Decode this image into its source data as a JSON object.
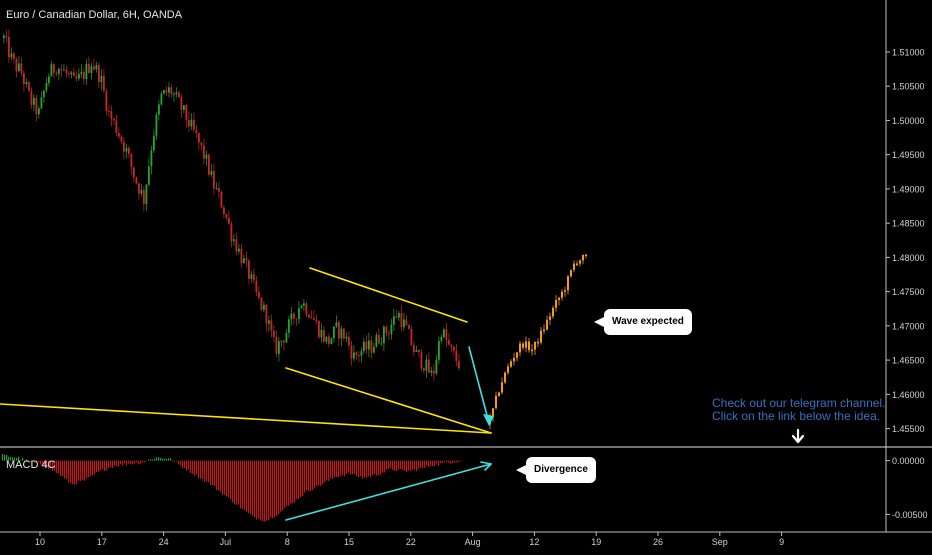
{
  "header": {
    "title": "Euro / Canadian Dollar, 6H, OANDA"
  },
  "indicator": {
    "label": "MACD 4C"
  },
  "callouts": {
    "wave": "Wave expected",
    "divergence": "Divergence"
  },
  "promo": {
    "line1": "Check out our telegram channel.",
    "line2": "Click on the link below the idea."
  },
  "colors": {
    "background": "#000000",
    "up": "#26a630",
    "down": "#c62828",
    "projection": "#f39c12",
    "trendline": "#ffe600",
    "arrow": "#3fe0e0",
    "macd_neg": "#c0181c",
    "macd_pos": "#2a9a2a"
  },
  "chart_data": [
    {
      "type": "candlestick",
      "title": "Euro / Canadian Dollar, 6H, OANDA",
      "x_ticks": [
        "10",
        "17",
        "24",
        "Jul",
        "8",
        "15",
        "22",
        "Aug",
        "12",
        "19",
        "26",
        "Sep",
        "9"
      ],
      "y_ticks": [
        "1.51000",
        "1.50500",
        "1.50000",
        "1.49500",
        "1.49000",
        "1.48500",
        "1.48000",
        "1.47500",
        "1.47000",
        "1.46500",
        "1.46000",
        "1.45500"
      ],
      "ylim": [
        1.4545,
        1.5135
      ],
      "price_path": [
        1.512,
        1.5085,
        1.507,
        1.503,
        1.501,
        1.5065,
        1.508,
        1.507,
        1.5055,
        1.5065,
        1.5085,
        1.5065,
        1.501,
        1.4985,
        1.4955,
        1.4915,
        1.4885,
        1.4975,
        1.5035,
        1.5045,
        1.5025,
        1.5,
        1.4975,
        1.4945,
        1.4905,
        1.4875,
        1.4835,
        1.4805,
        1.4775,
        1.474,
        1.4715,
        1.4665,
        1.4685,
        1.471,
        1.4735,
        1.472,
        1.4695,
        1.4675,
        1.4695,
        1.4685,
        1.4655,
        1.4665,
        1.467,
        1.4685,
        1.4695,
        1.472,
        1.4695,
        1.466,
        1.4645,
        1.4625,
        1.4695,
        1.4665,
        1.4645
      ],
      "projection_path": [
        1.4562,
        1.4615,
        1.465,
        1.4675,
        1.4665,
        1.4695,
        1.4728,
        1.4755,
        1.4795,
        1.48
      ],
      "annotations": [
        "Wave expected",
        "Divergence",
        "Check out our telegram channel.",
        "Click on the link below the idea."
      ]
    },
    {
      "type": "bar",
      "title": "MACD 4C",
      "y_ticks": [
        "0.00000",
        "-0.00500"
      ],
      "ylim": [
        -0.0058,
        0.0009
      ],
      "histogram_path": [
        0.0005,
        0.0003,
        -0.0001,
        -0.0004,
        -0.0012,
        -0.0022,
        -0.0018,
        -0.001,
        -0.0005,
        -0.0003,
        -0.0002,
        0.0003,
        0.0002,
        -0.0006,
        -0.0014,
        -0.0022,
        -0.0032,
        -0.0042,
        -0.0052,
        -0.0056,
        -0.0048,
        -0.0038,
        -0.0028,
        -0.0022,
        -0.0015,
        -0.0012,
        -0.0016,
        -0.0013,
        -0.0008,
        -0.001,
        -0.0008,
        -0.0004,
        -0.0002,
        0.0
      ]
    }
  ]
}
